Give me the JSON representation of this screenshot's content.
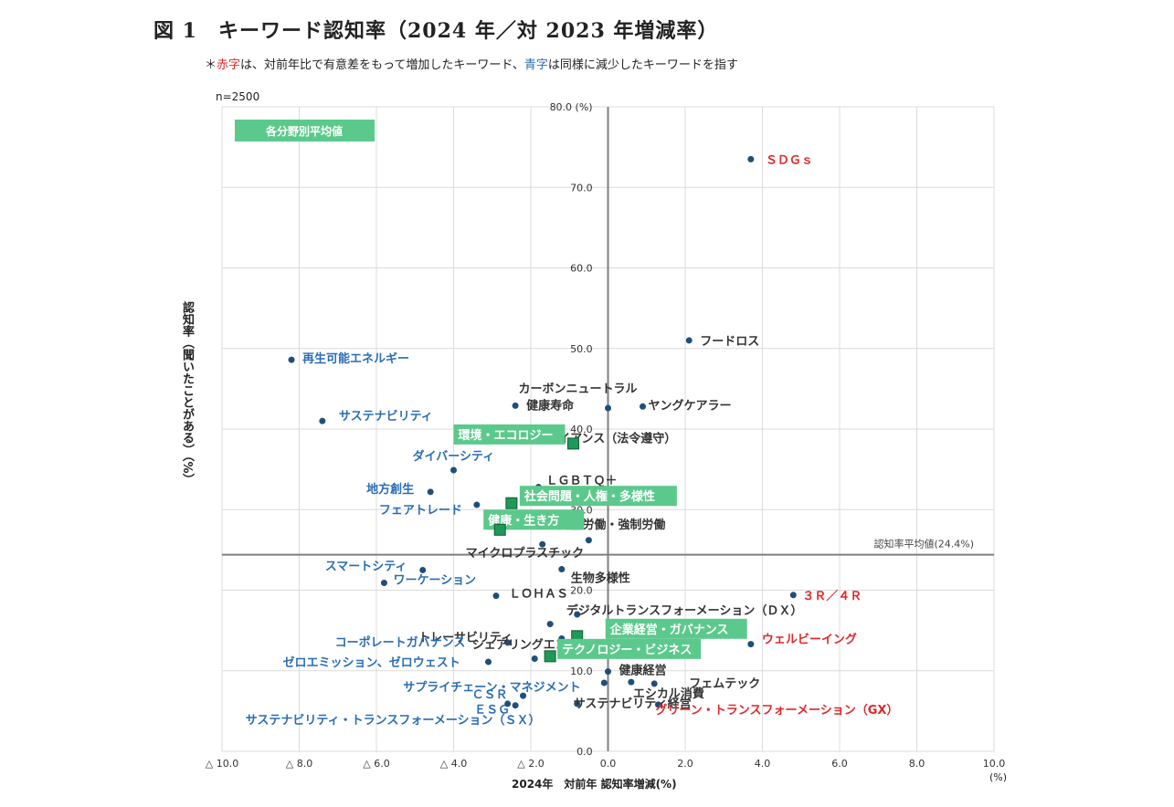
{
  "title": "図 1　キーワード認知率（2024 年／対 2023 年増減率）",
  "subtitle": {
    "prefix": "＊",
    "red": "赤字",
    "mid": "は、対前年比で有意差をもって増加したキーワード、",
    "blue": "青字",
    "suffix": "は同様に減少したキーワードを指す"
  },
  "n_label": "n=2500",
  "colors": {
    "red": "#e0282a",
    "blue": "#2a6db5",
    "dark": "#333333",
    "point": "#1f4e79",
    "green_box": "#5cc98c",
    "green_marker": "#1e9957"
  },
  "chart_data": {
    "type": "scatter",
    "xlabel": "2024年　対前年 認知率増減(%)",
    "x_unit": "(%)",
    "ylabel": "認知率（聞いたことがある）（%）",
    "xlim": [
      -10,
      10
    ],
    "ylim": [
      0,
      80
    ],
    "x_ticks": [
      "△ 10.0",
      "△ 8.0",
      "△ 6.0",
      "△ 4.0",
      "△ 2.0",
      "0.0",
      "2.0",
      "4.0",
      "6.0",
      "8.0",
      "10.0"
    ],
    "y_ticks": [
      "0.0",
      "10.0",
      "20.0",
      "30.0",
      "40.0",
      "50.0",
      "60.0",
      "70.0",
      "80.0 (%)"
    ],
    "grid": true,
    "average_line": {
      "y": 24.4,
      "label": "認知率平均値(24.4%)"
    },
    "legend": "各分野別平均値",
    "points": [
      {
        "label": "ＳＤＧｓ",
        "x": 3.7,
        "y": 73.5,
        "status": "up"
      },
      {
        "label": "フードロス",
        "x": 2.1,
        "y": 51.0,
        "status": "none"
      },
      {
        "label": "再生可能エネルギー",
        "x": -8.2,
        "y": 48.6,
        "status": "down"
      },
      {
        "label": "カーボンニュートラル",
        "x": 0.0,
        "y": 42.6,
        "status": "none"
      },
      {
        "label": "健康寿命",
        "x": -2.4,
        "y": 42.9,
        "status": "none"
      },
      {
        "label": "ヤングケアラー",
        "x": 0.9,
        "y": 42.8,
        "status": "none"
      },
      {
        "label": "サステナビリティ",
        "x": -7.4,
        "y": 41.0,
        "status": "down"
      },
      {
        "label": "ダイバーシティ",
        "x": -4.0,
        "y": 34.9,
        "status": "down"
      },
      {
        "label": "コンプライアンス（法令遵守）",
        "x": -0.9,
        "y": 38.0,
        "status": "none"
      },
      {
        "label": "ＬＧＢＴＱ＋",
        "x": -1.8,
        "y": 32.8,
        "status": "none"
      },
      {
        "label": "地方創生",
        "x": -4.6,
        "y": 32.2,
        "status": "down"
      },
      {
        "label": "フェアトレード",
        "x": -3.4,
        "y": 30.6,
        "status": "down"
      },
      {
        "label": "児童労働・強制労働",
        "x": -0.5,
        "y": 26.2,
        "status": "none"
      },
      {
        "label": "マイクロプラスチック",
        "x": -1.7,
        "y": 25.7,
        "status": "none"
      },
      {
        "label": "スマートシティ",
        "x": -4.8,
        "y": 22.5,
        "status": "down"
      },
      {
        "label": "生物多様性",
        "x": -1.2,
        "y": 22.6,
        "status": "none"
      },
      {
        "label": "ワーケーション",
        "x": -5.8,
        "y": 20.9,
        "status": "down"
      },
      {
        "label": "ＬＯＨＡＳ",
        "x": -2.9,
        "y": 19.3,
        "status": "none"
      },
      {
        "label": "３Ｒ／４Ｒ",
        "x": 4.8,
        "y": 19.4,
        "status": "up"
      },
      {
        "label": "トレーサビリティ",
        "x": -1.5,
        "y": 15.8,
        "status": "none"
      },
      {
        "label": "デジタルトランスフォーメーション（ＤＸ）",
        "x": -0.8,
        "y": 17.0,
        "status": "none"
      },
      {
        "label": "コーポレートガバナンス",
        "x": -2.6,
        "y": 13.5,
        "status": "down"
      },
      {
        "label": "シェアリングエコノミー",
        "x": -1.2,
        "y": 14.0,
        "status": "none"
      },
      {
        "label": "ウェルビーイング",
        "x": 3.7,
        "y": 13.3,
        "status": "up"
      },
      {
        "label": "ゼロエミッション、ゼロウェスト",
        "x": -3.1,
        "y": 11.1,
        "status": "down"
      },
      {
        "label": "",
        "x": -1.9,
        "y": 11.5,
        "status": "none"
      },
      {
        "label": "健康経営",
        "x": 0.0,
        "y": 9.9,
        "status": "none"
      },
      {
        "label": "サプライチェーン・マネジメント",
        "x": -0.1,
        "y": 8.5,
        "status": "down"
      },
      {
        "label": "フェムテック",
        "x": 1.2,
        "y": 8.4,
        "status": "none"
      },
      {
        "label": "エシカル消費",
        "x": 0.6,
        "y": 8.6,
        "status": "none"
      },
      {
        "label": "ＣＳＲ",
        "x": -2.2,
        "y": 6.9,
        "status": "down"
      },
      {
        "label": "ＥＳＧ",
        "x": -2.4,
        "y": 5.7,
        "status": "down"
      },
      {
        "label": "サステナビリティ経営",
        "x": -0.8,
        "y": 5.9,
        "status": "none"
      },
      {
        "label": "グリーン・トランスフォーメーション（GX）",
        "x": 1.3,
        "y": 5.8,
        "status": "up"
      },
      {
        "label": "サステナビリティ・トランスフォーメーション（ＳＸ）",
        "x": -2.6,
        "y": 5.9,
        "status": "down"
      }
    ],
    "averages": [
      {
        "label": "環境・エコロジー",
        "x": -0.9,
        "y": 38.2
      },
      {
        "label": "社会問題・人権・多様性",
        "x": -2.5,
        "y": 30.8
      },
      {
        "label": "健康・生き方",
        "x": -2.8,
        "y": 27.5
      },
      {
        "label": "企業経営・ガバナンス",
        "x": -0.8,
        "y": 14.3
      },
      {
        "label": "テクノロジー・ビジネス",
        "x": -1.5,
        "y": 11.8
      }
    ]
  }
}
